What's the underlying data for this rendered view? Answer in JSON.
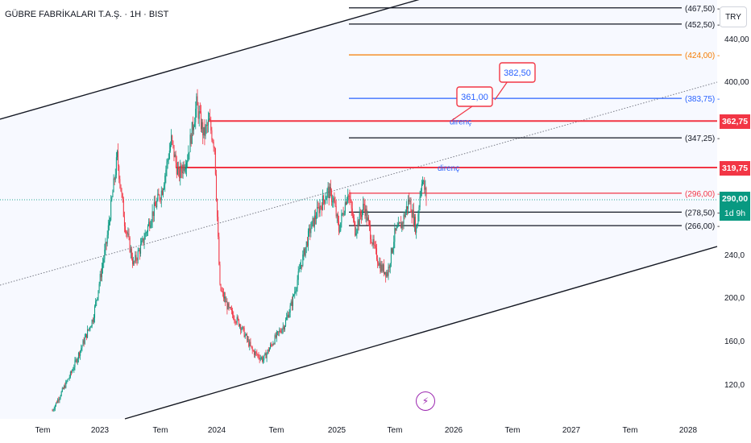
{
  "header": {
    "symbol": "GÜBRE FABRİKALARI T.A.Ş. · 1H · BIST",
    "currency": "TRY"
  },
  "last_price": {
    "value": "290,00",
    "countdown": "1d 9h"
  },
  "chart_data": {
    "type": "candlestick",
    "y_ticks": [
      "440,00",
      "400,00",
      "240,0",
      "200,0",
      "160,0",
      "120,0"
    ],
    "x_ticks": [
      "Tem",
      "2023",
      "Tem",
      "2024",
      "Tem",
      "2025",
      "Tem",
      "2026",
      "Tem",
      "2027",
      "Tem",
      "2028"
    ],
    "levels": [
      {
        "value": 467.5,
        "label": "(467,50)",
        "color": "#131722"
      },
      {
        "value": 452.5,
        "label": "(452,50)",
        "color": "#131722"
      },
      {
        "value": 424.0,
        "label": "(424,00)",
        "color": "#f57c00"
      },
      {
        "value": 383.75,
        "label": "(383,75)",
        "color": "#2962ff"
      },
      {
        "value": 347.25,
        "label": "(347,25)",
        "color": "#131722"
      },
      {
        "value": 296.0,
        "label": "(296,00)",
        "color": "#f23645"
      },
      {
        "value": 278.5,
        "label": "(278,50)",
        "color": "#131722"
      },
      {
        "value": 266.0,
        "label": "(266,00)",
        "color": "#131722"
      }
    ],
    "resistance_lines": [
      {
        "value": 362.75,
        "label": "362,75",
        "annotation": "direnç",
        "color": "#f23645"
      },
      {
        "value": 319.75,
        "label": "319,75",
        "annotation": "direnç",
        "color": "#f23645"
      }
    ],
    "callouts": [
      "361,00",
      "382,50"
    ],
    "price_path": [
      [
        0,
        95
      ],
      [
        20,
        128
      ],
      [
        45,
        180
      ],
      [
        60,
        250
      ],
      [
        72,
        330
      ],
      [
        80,
        270
      ],
      [
        90,
        230
      ],
      [
        100,
        250
      ],
      [
        110,
        275
      ],
      [
        122,
        300
      ],
      [
        132,
        345
      ],
      [
        140,
        312
      ],
      [
        150,
        330
      ],
      [
        160,
        378
      ],
      [
        168,
        350
      ],
      [
        174,
        362
      ],
      [
        180,
        340
      ],
      [
        186,
        208
      ],
      [
        196,
        188
      ],
      [
        208,
        175
      ],
      [
        222,
        150
      ],
      [
        234,
        142
      ],
      [
        246,
        160
      ],
      [
        258,
        175
      ],
      [
        266,
        195
      ],
      [
        276,
        230
      ],
      [
        286,
        262
      ],
      [
        296,
        282
      ],
      [
        306,
        298
      ],
      [
        312,
        290
      ],
      [
        318,
        262
      ],
      [
        328,
        298
      ],
      [
        336,
        262
      ],
      [
        346,
        285
      ],
      [
        356,
        248
      ],
      [
        364,
        228
      ],
      [
        372,
        222
      ],
      [
        380,
        258
      ],
      [
        388,
        268
      ],
      [
        396,
        290
      ],
      [
        404,
        262
      ],
      [
        410,
        310
      ],
      [
        416,
        290
      ]
    ]
  }
}
